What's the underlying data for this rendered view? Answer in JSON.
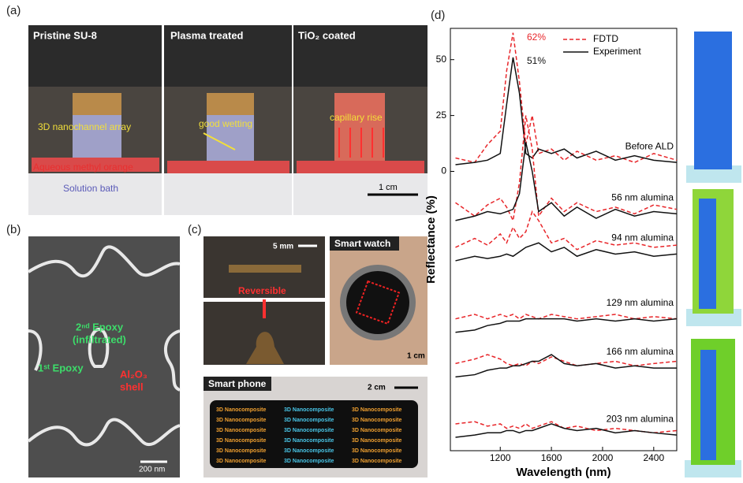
{
  "panels": {
    "a": {
      "label": "(a)",
      "photos": [
        {
          "title": "Pristine SU-8",
          "notes": [
            "3D nanochannel array",
            "Aqueous methyl orange",
            "Solution bath"
          ]
        },
        {
          "title": "Plasma treated",
          "notes": [
            "good wetting"
          ]
        },
        {
          "title": "TiO₂ coated",
          "notes": [
            "capillary rise",
            "1 cm"
          ]
        }
      ]
    },
    "b": {
      "label": "(b)",
      "notes": [
        "2ⁿᵈ Epoxy",
        "(infiltrated)",
        "1ˢᵗ Epoxy",
        "Al₂O₃",
        "shell",
        "200 nm"
      ]
    },
    "c": {
      "label": "(c)",
      "scale": "5 mm",
      "reversible": "Reversible",
      "watch": "Smart watch",
      "watch_scale": "1 cm",
      "phone": "Smart phone",
      "phone_scale": "2 cm",
      "phone_text": "3D Nanocomposite"
    },
    "d": {
      "label": "(d)"
    }
  },
  "chart_data": {
    "type": "line",
    "xlabel": "Wavelength (nm)",
    "ylabel": "Reflectance (%)",
    "xlim": [
      810,
      2580
    ],
    "ylim": [
      -125,
      64
    ],
    "xticks": [
      1200,
      1600,
      2000,
      2400
    ],
    "yticks": [
      0,
      25,
      50
    ],
    "legend": [
      {
        "name": "FDTD",
        "color": "#e8262a",
        "dashed": true
      },
      {
        "name": "Experiment",
        "color": "#111111",
        "dashed": false
      }
    ],
    "annotations": [
      "62%",
      "51%"
    ],
    "x": [
      850,
      1000,
      1100,
      1200,
      1250,
      1300,
      1350,
      1400,
      1450,
      1500,
      1600,
      1700,
      1800,
      1950,
      2100,
      2250,
      2400,
      2580
    ],
    "series": [
      {
        "name": "Before ALD",
        "fdtd": [
          6,
          4,
          12,
          18,
          45,
          62,
          40,
          12,
          25,
          8,
          10,
          5,
          9,
          5,
          7,
          4,
          8,
          5
        ],
        "experiment": [
          3,
          4,
          5,
          8,
          30,
          51,
          35,
          8,
          6,
          10,
          8,
          10,
          6,
          9,
          5,
          7,
          5,
          4
        ]
      },
      {
        "name": "56 nm alumina",
        "fdtd": [
          -14,
          -20,
          -15,
          -12,
          -16,
          -22,
          -5,
          25,
          10,
          -20,
          -12,
          -18,
          -14,
          -18,
          -16,
          -19,
          -15,
          -17
        ],
        "experiment": [
          -22,
          -20,
          -18,
          -19,
          -18,
          -17,
          -10,
          13,
          0,
          -18,
          -14,
          -20,
          -16,
          -21,
          -17,
          -20,
          -18,
          -19
        ]
      },
      {
        "name": "94 nm alumina",
        "fdtd": [
          -34,
          -30,
          -33,
          -28,
          -32,
          -25,
          -30,
          -27,
          -18,
          -22,
          -32,
          -30,
          -35,
          -31,
          -33,
          -32,
          -34,
          -33
        ],
        "experiment": [
          -40,
          -38,
          -39,
          -38,
          -37,
          -38,
          -36,
          -34,
          -33,
          -32,
          -36,
          -34,
          -38,
          -35,
          -37,
          -36,
          -38,
          -37
        ]
      },
      {
        "name": "129 nm alumina",
        "fdtd": [
          -66,
          -64,
          -66,
          -64,
          -65,
          -64,
          -66,
          -64,
          -65,
          -66,
          -64,
          -65,
          -66,
          -65,
          -64,
          -66,
          -65,
          -66
        ],
        "experiment": [
          -72,
          -71,
          -69,
          -68,
          -67,
          -67,
          -67,
          -66,
          -66,
          -66,
          -66,
          -66,
          -67,
          -66,
          -67,
          -66,
          -67,
          -66
        ]
      },
      {
        "name": "166 nm alumina",
        "fdtd": [
          -86,
          -84,
          -82,
          -84,
          -86,
          -87,
          -86,
          -87,
          -85,
          -86,
          -83,
          -85,
          -87,
          -86,
          -85,
          -87,
          -86,
          -85
        ],
        "experiment": [
          -92,
          -91,
          -89,
          -88,
          -88,
          -87,
          -87,
          -86,
          -85,
          -85,
          -82,
          -86,
          -87,
          -86,
          -88,
          -87,
          -88,
          -88
        ]
      },
      {
        "name": "203 nm alumina",
        "fdtd": [
          -113,
          -112,
          -114,
          -113,
          -115,
          -114,
          -115,
          -113,
          -115,
          -114,
          -112,
          -115,
          -114,
          -116,
          -115,
          -116,
          -117,
          -116
        ],
        "experiment": [
          -119,
          -118,
          -117,
          -117,
          -116,
          -116,
          -117,
          -116,
          -116,
          -115,
          -113,
          -115,
          -116,
          -115,
          -117,
          -116,
          -117,
          -118
        ]
      }
    ]
  }
}
